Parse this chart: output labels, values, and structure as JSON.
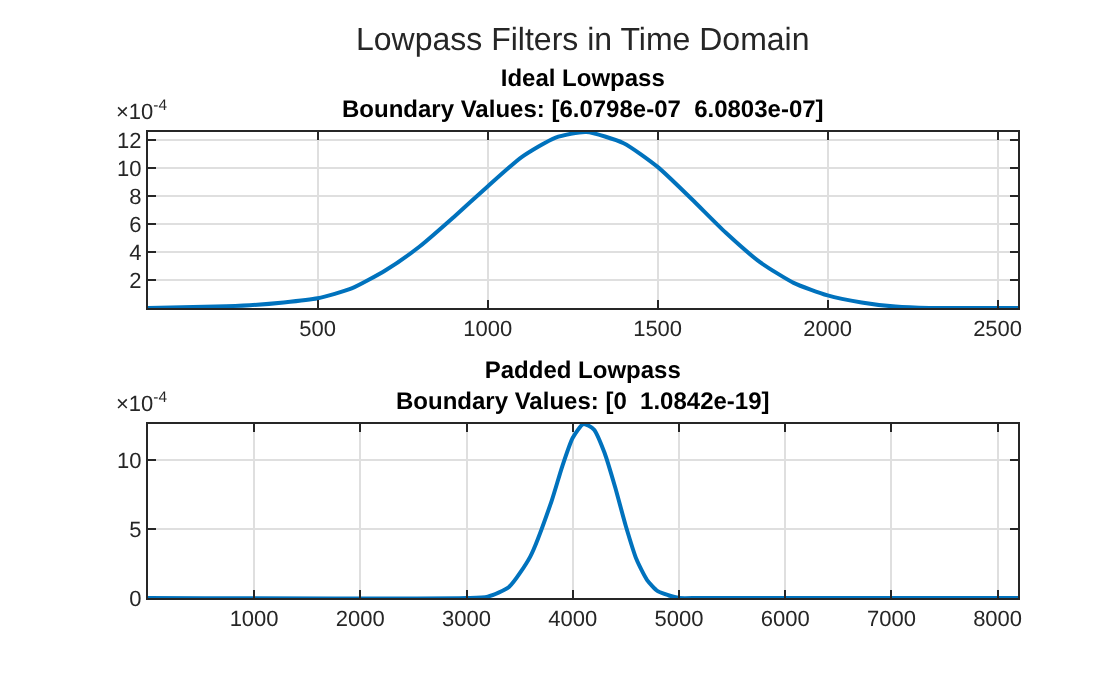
{
  "chart_data": [
    {
      "type": "line",
      "title": "Ideal Lowpass",
      "subtitle": "Boundary Values: [6.0798e-07  6.0803e-07]",
      "annotations": [
        "Lowpass Filters in Time Domain",
        "×10$^{-4}$"
      ],
      "x": [
        1,
        200,
        300,
        400,
        500,
        600,
        700,
        800,
        900,
        1000,
        1100,
        1200,
        1290,
        1400,
        1500,
        1600,
        1700,
        1800,
        1900,
        2000,
        2100,
        2200,
        2300,
        2400,
        2560
      ],
      "series": [
        {
          "color": "#0072bd",
          "values": [
            0,
            0.1,
            0.2,
            0.4,
            0.7,
            1.4,
            2.7,
            4.4,
            6.5,
            8.7,
            10.8,
            12.2,
            12.6,
            11.8,
            10.1,
            7.8,
            5.4,
            3.3,
            1.8,
            0.9,
            0.4,
            0.1,
            0,
            0,
            0
          ]
        }
      ],
      "xlim": [
        1,
        2560
      ],
      "ylim": [
        0,
        12.6
      ],
      "xticks": [
        500,
        1000,
        1500,
        2000,
        2500
      ],
      "yticks": [
        2,
        4,
        6,
        8,
        10,
        12
      ],
      "grid": true
    },
    {
      "type": "line",
      "title": "Padded Lowpass",
      "subtitle": "Boundary Values: [0  1.0842e-19]",
      "annotations": [
        "×10$^{-4}$"
      ],
      "x": [
        1,
        3000,
        3200,
        3400,
        3600,
        3800,
        3900,
        4000,
        4100,
        4200,
        4300,
        4400,
        4500,
        4600,
        4700,
        4800,
        4900,
        5000,
        5200,
        8192
      ],
      "series": [
        {
          "color": "#0072bd",
          "values": [
            0,
            0,
            0.1,
            0.8,
            3,
            7,
            9.5,
            11.6,
            12.6,
            12.2,
            10.5,
            8,
            5.2,
            2.8,
            1.3,
            0.5,
            0.2,
            0,
            0,
            0
          ]
        }
      ],
      "xlim": [
        1,
        8192
      ],
      "ylim": [
        0,
        12.6
      ],
      "xticks": [
        1000,
        2000,
        3000,
        4000,
        5000,
        6000,
        7000,
        8000
      ],
      "yticks": [
        0,
        5,
        10
      ],
      "grid": true
    }
  ]
}
